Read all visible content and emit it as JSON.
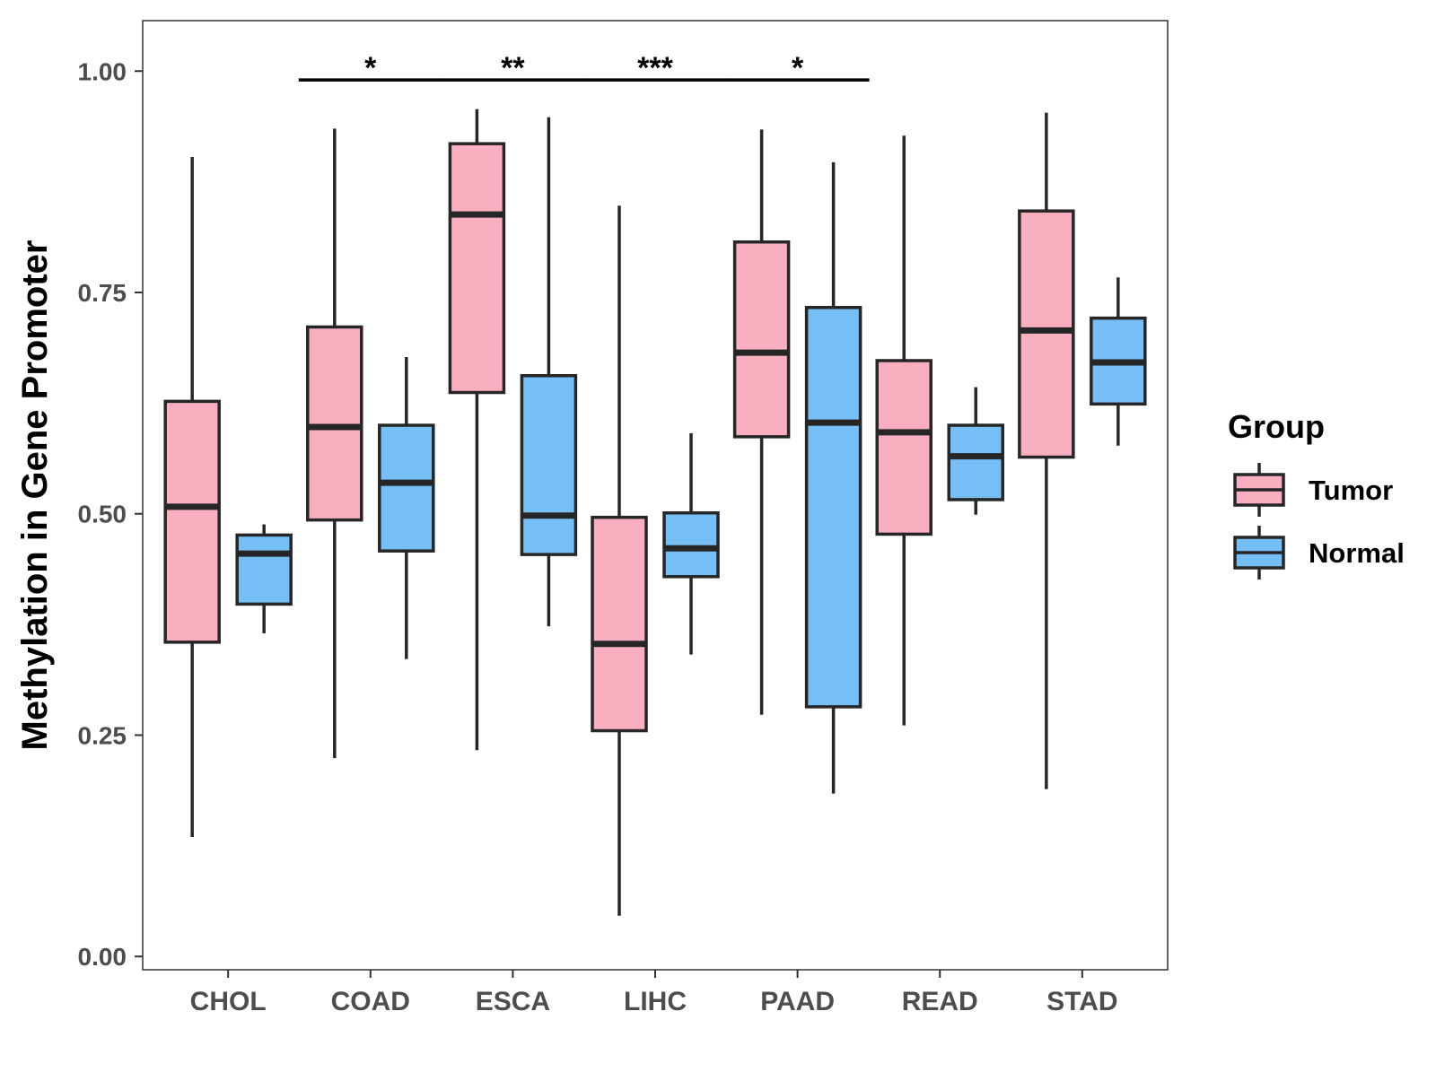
{
  "chart_data": {
    "type": "boxplot",
    "title": "",
    "xlabel": "",
    "ylabel": "Methylation in Gene Promoter",
    "ylim": [
      -0.015,
      1.057
    ],
    "yticks": [
      0.0,
      0.25,
      0.5,
      0.75,
      1.0
    ],
    "ytick_labels": [
      "0.00",
      "0.25",
      "0.50",
      "0.75",
      "1.00"
    ],
    "grid": false,
    "legend": {
      "title": "Group",
      "position": "right"
    },
    "colors": {
      "Tumor": "#FAAFC1",
      "Normal": "#76BEF6",
      "stroke": "#262626",
      "axis_text": "#4D4D4D"
    },
    "categories": [
      "CHOL",
      "COAD",
      "ESCA",
      "LIHC",
      "PAAD",
      "READ",
      "STAD"
    ],
    "series": [
      {
        "name": "Tumor",
        "boxes": [
          {
            "min": 0.135,
            "q1": 0.355,
            "median": 0.508,
            "q3": 0.627,
            "max": 0.903
          },
          {
            "min": 0.224,
            "q1": 0.493,
            "median": 0.598,
            "q3": 0.711,
            "max": 0.935
          },
          {
            "min": 0.233,
            "q1": 0.637,
            "median": 0.838,
            "q3": 0.918,
            "max": 0.957
          },
          {
            "min": 0.046,
            "q1": 0.255,
            "median": 0.353,
            "q3": 0.496,
            "max": 0.848
          },
          {
            "min": 0.273,
            "q1": 0.587,
            "median": 0.682,
            "q3": 0.807,
            "max": 0.934
          },
          {
            "min": 0.261,
            "q1": 0.477,
            "median": 0.592,
            "q3": 0.673,
            "max": 0.927
          },
          {
            "min": 0.189,
            "q1": 0.564,
            "median": 0.707,
            "q3": 0.842,
            "max": 0.953
          }
        ]
      },
      {
        "name": "Normal",
        "boxes": [
          {
            "min": 0.365,
            "q1": 0.398,
            "median": 0.455,
            "q3": 0.476,
            "max": 0.488
          },
          {
            "min": 0.336,
            "q1": 0.458,
            "median": 0.535,
            "q3": 0.6,
            "max": 0.677
          },
          {
            "min": 0.373,
            "q1": 0.454,
            "median": 0.498,
            "q3": 0.656,
            "max": 0.948
          },
          {
            "min": 0.341,
            "q1": 0.429,
            "median": 0.461,
            "q3": 0.501,
            "max": 0.591
          },
          {
            "min": 0.184,
            "q1": 0.282,
            "median": 0.603,
            "q3": 0.733,
            "max": 0.897
          },
          {
            "min": 0.499,
            "q1": 0.516,
            "median": 0.565,
            "q3": 0.6,
            "max": 0.643
          },
          {
            "min": 0.577,
            "q1": 0.624,
            "median": 0.671,
            "q3": 0.721,
            "max": 0.767
          }
        ]
      }
    ],
    "annotations": [
      {
        "category": "COAD",
        "label": "*",
        "y": 0.99
      },
      {
        "category": "ESCA",
        "label": "**",
        "y": 0.99
      },
      {
        "category": "LIHC",
        "label": "***",
        "y": 0.99
      },
      {
        "category": "PAAD",
        "label": "*",
        "y": 0.99
      }
    ]
  }
}
